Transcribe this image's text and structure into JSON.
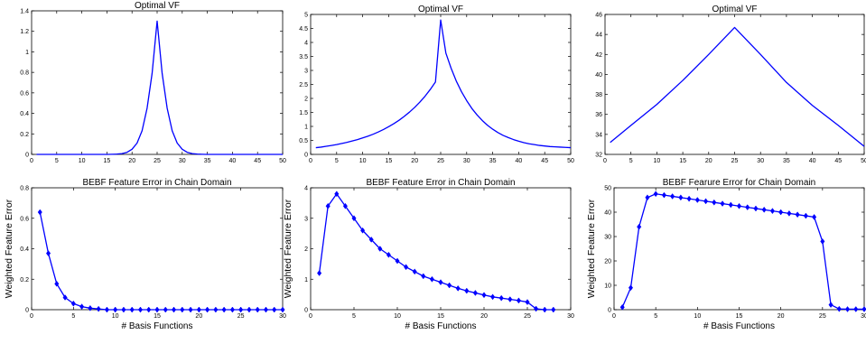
{
  "chart_data": [
    {
      "type": "line",
      "title": "Optimal VF",
      "xlabel": "",
      "ylabel": "",
      "xlim": [
        0,
        50
      ],
      "ylim": [
        0,
        1.4
      ],
      "xticks": [
        "0",
        "5",
        "10",
        "15",
        "20",
        "25",
        "30",
        "35",
        "40",
        "45",
        "50"
      ],
      "yticks": [
        "0",
        "0.2",
        "0.4",
        "0.6",
        "0.8",
        "1",
        "1.2",
        "1.4"
      ],
      "color": "#0000ff",
      "markers": false,
      "series": [
        {
          "x": [
            1,
            2,
            3,
            4,
            5,
            6,
            7,
            8,
            9,
            10,
            11,
            12,
            13,
            14,
            15,
            16,
            17,
            18,
            19,
            20,
            21,
            22,
            23,
            24,
            25,
            26,
            27,
            28,
            29,
            30,
            31,
            32,
            33,
            34,
            35,
            36,
            37,
            38,
            39,
            40,
            41,
            42,
            43,
            44,
            45,
            46,
            47,
            48,
            49,
            50
          ],
          "values": [
            0,
            0,
            0,
            0,
            0,
            0,
            0,
            0,
            0,
            0,
            0,
            0,
            0,
            0,
            0,
            0.001,
            0.003,
            0.008,
            0.02,
            0.05,
            0.11,
            0.23,
            0.45,
            0.79,
            1.3,
            0.79,
            0.45,
            0.23,
            0.11,
            0.05,
            0.02,
            0.008,
            0.003,
            0.001,
            0,
            0,
            0,
            0,
            0,
            0,
            0,
            0,
            0,
            0,
            0,
            0,
            0,
            0,
            0,
            0
          ]
        }
      ]
    },
    {
      "type": "line",
      "title": "Optimal VF",
      "xlabel": "",
      "ylabel": "",
      "xlim": [
        0,
        50
      ],
      "ylim": [
        0,
        5
      ],
      "xticks": [
        "0",
        "5",
        "10",
        "15",
        "20",
        "25",
        "30",
        "35",
        "40",
        "45",
        "50"
      ],
      "yticks": [
        "0",
        "0.5",
        "1",
        "1.5",
        "2",
        "2.5",
        "3",
        "3.5",
        "4",
        "4.5",
        "5"
      ],
      "color": "#0000ff",
      "markers": false,
      "series": [
        {
          "x": [
            1,
            2,
            3,
            4,
            5,
            6,
            7,
            8,
            9,
            10,
            11,
            12,
            13,
            14,
            15,
            16,
            17,
            18,
            19,
            20,
            21,
            22,
            23,
            24,
            25,
            26,
            27,
            28,
            29,
            30,
            31,
            32,
            33,
            34,
            35,
            36,
            37,
            38,
            39,
            40,
            41,
            42,
            43,
            44,
            45,
            46,
            47,
            48,
            49,
            50
          ],
          "values": [
            0.24,
            0.26,
            0.29,
            0.32,
            0.35,
            0.39,
            0.43,
            0.48,
            0.53,
            0.59,
            0.65,
            0.72,
            0.8,
            0.89,
            0.99,
            1.1,
            1.22,
            1.36,
            1.51,
            1.68,
            1.87,
            2.08,
            2.32,
            2.59,
            4.8,
            3.62,
            3.08,
            2.62,
            2.24,
            1.92,
            1.64,
            1.41,
            1.21,
            1.04,
            0.9,
            0.78,
            0.68,
            0.6,
            0.53,
            0.47,
            0.42,
            0.38,
            0.35,
            0.32,
            0.3,
            0.28,
            0.27,
            0.26,
            0.25,
            0.24
          ]
        }
      ]
    },
    {
      "type": "line",
      "title": "Optimal VF",
      "xlabel": "",
      "ylabel": "",
      "xlim": [
        0,
        50
      ],
      "ylim": [
        32,
        46
      ],
      "xticks": [
        "0",
        "5",
        "10",
        "15",
        "20",
        "25",
        "30",
        "35",
        "40",
        "45",
        "50"
      ],
      "yticks": [
        "32",
        "34",
        "36",
        "38",
        "40",
        "42",
        "44",
        "46"
      ],
      "color": "#0000ff",
      "markers": false,
      "series": [
        {
          "x": [
            1,
            5,
            10,
            15,
            20,
            25,
            30,
            35,
            40,
            45,
            50
          ],
          "values": [
            33.2,
            34.9,
            37.0,
            39.4,
            42.0,
            44.7,
            42.0,
            39.2,
            36.9,
            34.9,
            32.8
          ]
        }
      ]
    },
    {
      "type": "line",
      "title": "BEBF Feature Error in Chain Domain",
      "xlabel": "# Basis Functions",
      "ylabel": "Weighted Feature Error",
      "xlim": [
        0,
        30
      ],
      "ylim": [
        0,
        0.8
      ],
      "xticks": [
        "0",
        "5",
        "10",
        "15",
        "20",
        "25",
        "30"
      ],
      "yticks": [
        "0",
        "0.2",
        "0.4",
        "0.6",
        "0.8"
      ],
      "color": "#0000ff",
      "markers": true,
      "series": [
        {
          "x": [
            1,
            2,
            3,
            4,
            5,
            6,
            7,
            8,
            9,
            10,
            11,
            12,
            13,
            14,
            15,
            16,
            17,
            18,
            19,
            20,
            21,
            22,
            23,
            24,
            25,
            26,
            27,
            28,
            29,
            30
          ],
          "values": [
            0.64,
            0.37,
            0.17,
            0.08,
            0.04,
            0.02,
            0.01,
            0.005,
            0,
            0,
            0,
            0,
            0,
            0,
            0,
            0,
            0,
            0,
            0,
            0,
            0,
            0,
            0,
            0,
            0,
            0,
            0,
            0,
            0,
            0
          ]
        }
      ]
    },
    {
      "type": "line",
      "title": "BEBF Feature Error in Chain Domain",
      "xlabel": "# Basis Functions",
      "ylabel": "Weighted Feature Error",
      "xlim": [
        0,
        30
      ],
      "ylim": [
        0,
        4
      ],
      "xticks": [
        "0",
        "5",
        "10",
        "15",
        "20",
        "25",
        "30"
      ],
      "yticks": [
        "0",
        "1",
        "2",
        "3",
        "4"
      ],
      "color": "#0000ff",
      "markers": true,
      "series": [
        {
          "x": [
            1,
            2,
            3,
            4,
            5,
            6,
            7,
            8,
            9,
            10,
            11,
            12,
            13,
            14,
            15,
            16,
            17,
            18,
            19,
            20,
            21,
            22,
            23,
            24,
            25,
            26,
            27,
            28
          ],
          "values": [
            1.2,
            3.4,
            3.8,
            3.4,
            3.0,
            2.6,
            2.3,
            2.0,
            1.8,
            1.6,
            1.4,
            1.25,
            1.1,
            1.0,
            0.9,
            0.8,
            0.7,
            0.62,
            0.55,
            0.48,
            0.42,
            0.38,
            0.34,
            0.3,
            0.25,
            0.03,
            0.0,
            0.0
          ]
        }
      ]
    },
    {
      "type": "line",
      "title": "BEBF Fearure Error for Chain Domain",
      "xlabel": "# Basis Functions",
      "ylabel": "Weighted Feature Error",
      "xlim": [
        0,
        30
      ],
      "ylim": [
        0,
        50
      ],
      "xticks": [
        "0",
        "5",
        "10",
        "15",
        "20",
        "25",
        "30"
      ],
      "yticks": [
        "0",
        "10",
        "20",
        "30",
        "40",
        "50"
      ],
      "color": "#0000ff",
      "markers": true,
      "series": [
        {
          "x": [
            1,
            2,
            3,
            4,
            5,
            6,
            7,
            8,
            9,
            10,
            11,
            12,
            13,
            14,
            15,
            16,
            17,
            18,
            19,
            20,
            21,
            22,
            23,
            24,
            25,
            26,
            27,
            28,
            29,
            30
          ],
          "values": [
            1,
            9,
            34,
            46,
            47.5,
            47,
            46.5,
            46,
            45.5,
            45,
            44.5,
            44,
            43.5,
            43,
            42.5,
            42,
            41.5,
            41,
            40.5,
            40,
            39.5,
            39,
            38.5,
            38,
            28,
            2,
            0.3,
            0.2,
            0.2,
            0.2
          ]
        }
      ]
    }
  ]
}
